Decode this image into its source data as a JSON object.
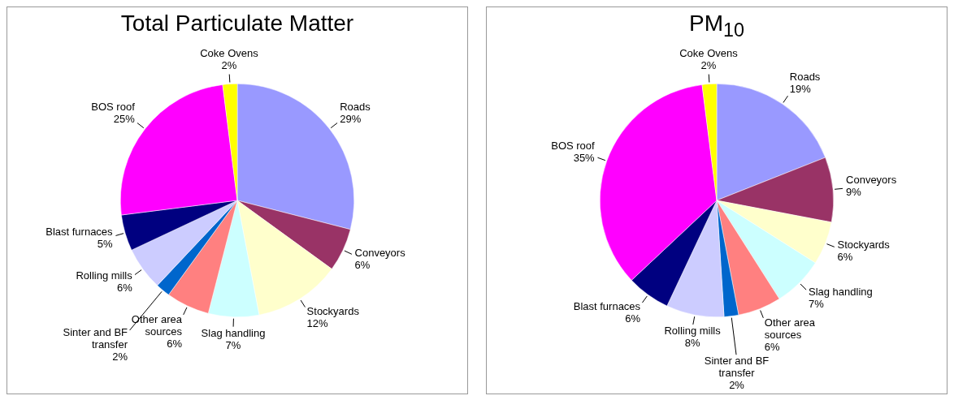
{
  "chart_data": [
    {
      "type": "pie",
      "title": "Total Particulate Matter",
      "categories": [
        "Roads",
        "Conveyors",
        "Stockyards",
        "Slag handling",
        "Other area sources",
        "Sinter and BF transfer",
        "Rolling mills",
        "Blast furnaces",
        "BOS roof",
        "Coke Ovens"
      ],
      "values": [
        29,
        6,
        12,
        7,
        6,
        2,
        6,
        5,
        25,
        2
      ],
      "value_labels": [
        "29%",
        "6%",
        "12%",
        "7%",
        "6%",
        "2%",
        "6%",
        "5%",
        "25%",
        "2%"
      ],
      "colors": [
        "#9999ff",
        "#993366",
        "#ffffcc",
        "#ccffff",
        "#ff8080",
        "#0066cc",
        "#ccccff",
        "#000080",
        "#ff00ff",
        "#ffff00"
      ]
    },
    {
      "type": "pie",
      "title": "PM$_{10}$",
      "categories": [
        "Roads",
        "Conveyors",
        "Stockyards",
        "Slag handling",
        "Other area sources",
        "Sinter and BF transfer",
        "Rolling mills",
        "Blast furnaces",
        "BOS roof",
        "Coke Ovens"
      ],
      "values": [
        19,
        9,
        6,
        7,
        6,
        2,
        8,
        6,
        35,
        2
      ],
      "value_labels": [
        "19%",
        "9%",
        "6%",
        "7%",
        "6%",
        "2%",
        "8%",
        "6%",
        "35%",
        "2%"
      ],
      "colors": [
        "#9999ff",
        "#993366",
        "#ffffcc",
        "#ccffff",
        "#ff8080",
        "#0066cc",
        "#ccccff",
        "#000080",
        "#ff00ff",
        "#ffff00"
      ]
    }
  ]
}
